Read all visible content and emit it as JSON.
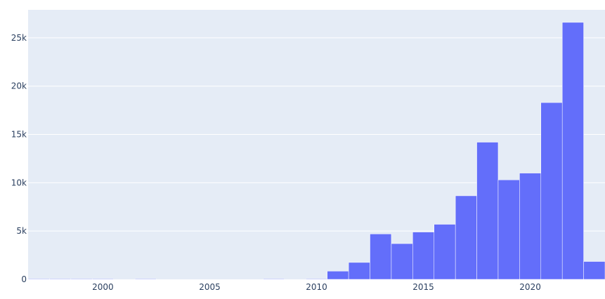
{
  "chart_data": {
    "type": "bar",
    "title": "",
    "xlabel": "",
    "ylabel": "",
    "bin_width": 1,
    "xlim": [
      1996.5,
      2023.5
    ],
    "ylim": [
      0,
      27900
    ],
    "x_ticks": [
      2000,
      2005,
      2010,
      2015,
      2020
    ],
    "x_tick_labels": [
      "2000",
      "2005",
      "2010",
      "2015",
      "2020"
    ],
    "y_ticks": [
      0,
      5000,
      10000,
      15000,
      20000,
      25000
    ],
    "y_tick_labels": [
      "0",
      "5k",
      "10k",
      "15k",
      "20k",
      "25k"
    ],
    "grid": true,
    "series": [
      {
        "bins": [
          {
            "start": 1996.5,
            "value": 60
          },
          {
            "start": 1997.5,
            "value": 60
          },
          {
            "start": 1998.5,
            "value": 60
          },
          {
            "start": 1999.5,
            "value": 60
          },
          {
            "start": 2001.5,
            "value": 60
          },
          {
            "start": 2007.5,
            "value": 60
          },
          {
            "start": 2009.5,
            "value": 60
          },
          {
            "start": 2010.5,
            "value": 850
          },
          {
            "start": 2011.5,
            "value": 1750
          },
          {
            "start": 2012.5,
            "value": 4700
          },
          {
            "start": 2013.5,
            "value": 3700
          },
          {
            "start": 2014.5,
            "value": 4900
          },
          {
            "start": 2015.5,
            "value": 5700
          },
          {
            "start": 2016.5,
            "value": 8650
          },
          {
            "start": 2017.5,
            "value": 14200
          },
          {
            "start": 2018.5,
            "value": 10300
          },
          {
            "start": 2019.5,
            "value": 11000
          },
          {
            "start": 2020.5,
            "value": 18300
          },
          {
            "start": 2021.5,
            "value": 26600
          },
          {
            "start": 2022.5,
            "value": 1850
          }
        ]
      }
    ],
    "colors": {
      "bar": "#636efa",
      "plot_bg": "#e5ecf6",
      "grid": "#ffffff",
      "tick_text": "#2a3f5f"
    }
  }
}
